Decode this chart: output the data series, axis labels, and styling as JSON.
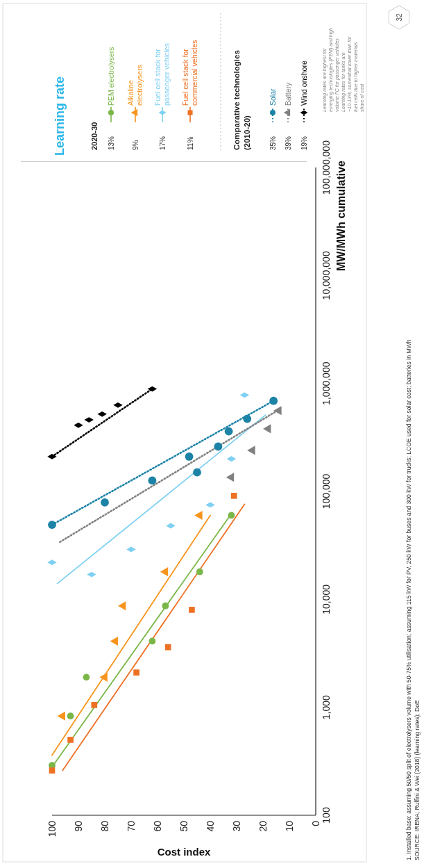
{
  "chart_data": {
    "type": "scatter",
    "xlabel": "Cost index",
    "ylabel": "MW/MWh cumulative",
    "legend_title": "Learning rate",
    "log": "y",
    "xlim": [
      100,
      0
    ],
    "ylim": [
      100,
      100000000
    ],
    "xticks": [
      100,
      90,
      80,
      70,
      60,
      50,
      40,
      30,
      20,
      10,
      0
    ],
    "yticks": [
      100,
      {
        "value": 1000,
        "label": "1,000"
      },
      {
        "value": 10000,
        "label": "10,000"
      },
      {
        "value": 100000,
        "label": "100,000"
      },
      {
        "value": 1000000,
        "label": "1,000,000"
      },
      {
        "value": 10000000,
        "label": "10,000,000"
      },
      {
        "value": 100000000,
        "label": "100,000,000"
      }
    ],
    "grid": false,
    "legend": "top right",
    "series": [
      {
        "name": "PEM electrolysers",
        "type": "scatter",
        "marker": "circle",
        "color": "#7ab648",
        "x": [
          100,
          93,
          87,
          62,
          57,
          44,
          32
        ],
        "values": [
          290,
          830,
          1900,
          4100,
          8700,
          18000,
          60000
        ]
      },
      {
        "type": "line",
        "marker": "none",
        "line_style": "solid",
        "color": "#7ab648",
        "x": [
          100,
          32
        ],
        "values": [
          280,
          62000
        ]
      },
      {
        "name": "Alkaline electrolysers",
        "type": "scatter",
        "marker": "triangle",
        "color": "#f7941d",
        "x": [
          96,
          80,
          76,
          73,
          57,
          44
        ],
        "values": [
          830,
          1900,
          4100,
          8700,
          18000,
          60000
        ]
      },
      {
        "type": "line",
        "marker": "none",
        "line_style": "solid",
        "color": "#f7941d",
        "x": [
          100,
          40
        ],
        "values": [
          360,
          60000
        ]
      },
      {
        "name": "Fuel cell stack for passenger vehicles",
        "type": "scatter",
        "marker": "diamond",
        "color": "#7fd0f2",
        "x": [
          100,
          85,
          70,
          55,
          40,
          32,
          27
        ],
        "values": [
          22000,
          17000,
          29000,
          48000,
          75000,
          200000,
          780000
        ]
      },
      {
        "type": "line",
        "marker": "none",
        "line_style": "solid",
        "color": "#7fd0f2",
        "x": [
          98,
          19
        ],
        "values": [
          14000,
          510000
        ]
      },
      {
        "name": "Fuel cell stack for commercial vehicles",
        "type": "scatter",
        "marker": "square",
        "color": "#ee7023",
        "x": [
          100,
          93,
          84,
          68,
          56,
          47,
          31
        ],
        "values": [
          260,
          500,
          1050,
          2100,
          3600,
          8000,
          91000
        ]
      },
      {
        "type": "line",
        "marker": "none",
        "line_style": "solid",
        "color": "#ee7023",
        "x": [
          96,
          27
        ],
        "values": [
          260,
          76000
        ]
      },
      {
        "name": "Solar",
        "type": "scatter",
        "marker": "circle",
        "color": "#1c83a6",
        "x": [
          100,
          80,
          62,
          48,
          45,
          37,
          33,
          26,
          16
        ],
        "values": [
          49000,
          79000,
          126000,
          210000,
          150000,
          260000,
          360000,
          470000,
          690000
        ]
      },
      {
        "type": "line",
        "marker": "none",
        "line_style": "dotted",
        "color": "#1c83a6",
        "x": [
          100,
          16
        ],
        "values": [
          49000,
          690000
        ]
      },
      {
        "name": "Battery",
        "type": "scatter",
        "marker": "triangle",
        "color": "#808080",
        "x": [
          14,
          18,
          24,
          32
        ],
        "values": [
          560000,
          380000,
          240000,
          135000
        ]
      },
      {
        "type": "line",
        "marker": "none",
        "line_style": "dotted",
        "color": "#808080",
        "x": [
          97,
          13
        ],
        "values": [
          34000,
          590000
        ]
      },
      {
        "name": "Wind onshore",
        "type": "scatter",
        "marker": "diamond",
        "color": "#000000",
        "x": [
          100,
          90,
          86,
          81,
          75,
          62
        ],
        "values": [
          210000,
          410000,
          460000,
          520000,
          630000,
          890000
        ]
      },
      {
        "type": "line",
        "marker": "none",
        "line_style": "dotted",
        "color": "#000000",
        "x": [
          100,
          62
        ],
        "values": [
          210000,
          890000
        ]
      }
    ],
    "annotations": [
      "2020-30",
      "13%",
      "9%",
      "17%",
      "11%",
      "Comparative technologies\n(2010-20)",
      "35%",
      "39%",
      "19%",
      "Learning rates are highest for emerging technologies (PEM) and high volume FC for passenger vehicles Learning rates for tanks are ~10-13%, somewhat lower than for fuel cells due to higher materials share of cost",
      "1.  Installed base: assuming 50/50 split of electrolysers volume with 50-75% utilisation; assuming 115 kW for PV, 250 kW for buses and 300 kW for trucks; LCOE used for solar cost; batteries in MWh",
      "SOURCE: IRENA; Ruffini & Wei (2018) (learning rates); DoE",
      "32"
    ]
  }
}
